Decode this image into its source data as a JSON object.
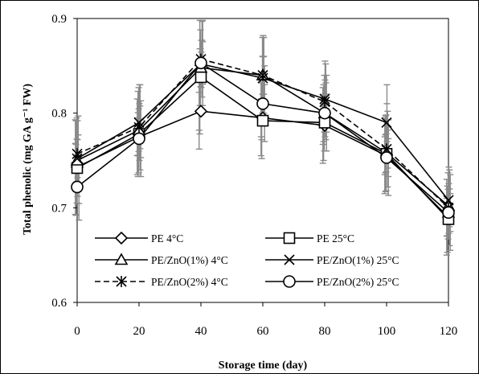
{
  "chart_data": {
    "type": "line",
    "title": "",
    "xlabel": "Storage time (day)",
    "ylabel": "Total phenolic (mg GA g⁻¹ FW)",
    "xlim": [
      0,
      120
    ],
    "ylim": [
      0.6,
      0.9
    ],
    "xticks": [
      0,
      20,
      40,
      60,
      80,
      100,
      120
    ],
    "yticks": [
      0.6,
      0.7,
      0.8,
      0.9
    ],
    "x_tick_labels": [
      "0",
      "20",
      "40",
      "60",
      "80",
      "100",
      "120"
    ],
    "y_tick_labels": [
      "0.6",
      "0.7",
      "0.8",
      "0.9"
    ],
    "grid": false,
    "legend_position": "bottom-inside",
    "x": [
      0,
      20,
      40,
      60,
      80,
      100,
      120
    ],
    "series": [
      {
        "name": "PE 4°C",
        "marker": "diamond",
        "dash": "solid",
        "values": [
          0.743,
          0.775,
          0.802,
          0.795,
          0.787,
          0.755,
          0.69
        ],
        "errors": [
          0.05,
          0.04,
          0.04,
          0.04,
          0.04,
          0.04,
          0.04
        ]
      },
      {
        "name": "PE 25°C",
        "marker": "square",
        "dash": "solid",
        "values": [
          0.742,
          0.778,
          0.838,
          0.792,
          0.79,
          0.757,
          0.688
        ],
        "errors": [
          0.05,
          0.045,
          0.06,
          0.04,
          0.04,
          0.04,
          0.035
        ]
      },
      {
        "name": "PE/ZnO(1%) 4°C",
        "marker": "triangle",
        "dash": "solid",
        "values": [
          0.75,
          0.782,
          0.848,
          0.84,
          0.8,
          0.758,
          0.702
        ],
        "errors": [
          0.045,
          0.045,
          0.04,
          0.04,
          0.04,
          0.04,
          0.035
        ]
      },
      {
        "name": "PE/ZnO(1%) 25°C",
        "marker": "x",
        "dash": "solid",
        "values": [
          0.752,
          0.79,
          0.852,
          0.837,
          0.815,
          0.79,
          0.708
        ],
        "errors": [
          0.04,
          0.04,
          0.025,
          0.045,
          0.04,
          0.04,
          0.035
        ]
      },
      {
        "name": "PE/ZnO(2%) 4°C",
        "marker": "asterisk",
        "dash": "dashed",
        "values": [
          0.757,
          0.785,
          0.857,
          0.84,
          0.812,
          0.762,
          0.7
        ],
        "errors": [
          0.04,
          0.045,
          0.04,
          0.04,
          0.04,
          0.04,
          0.04
        ]
      },
      {
        "name": "PE/ZnO(2%) 25°C",
        "marker": "circle",
        "dash": "solid",
        "values": [
          0.722,
          0.773,
          0.853,
          0.81,
          0.8,
          0.753,
          0.695
        ],
        "errors": [
          0.035,
          0.04,
          0.045,
          0.04,
          0.04,
          0.04,
          0.04
        ]
      }
    ]
  }
}
